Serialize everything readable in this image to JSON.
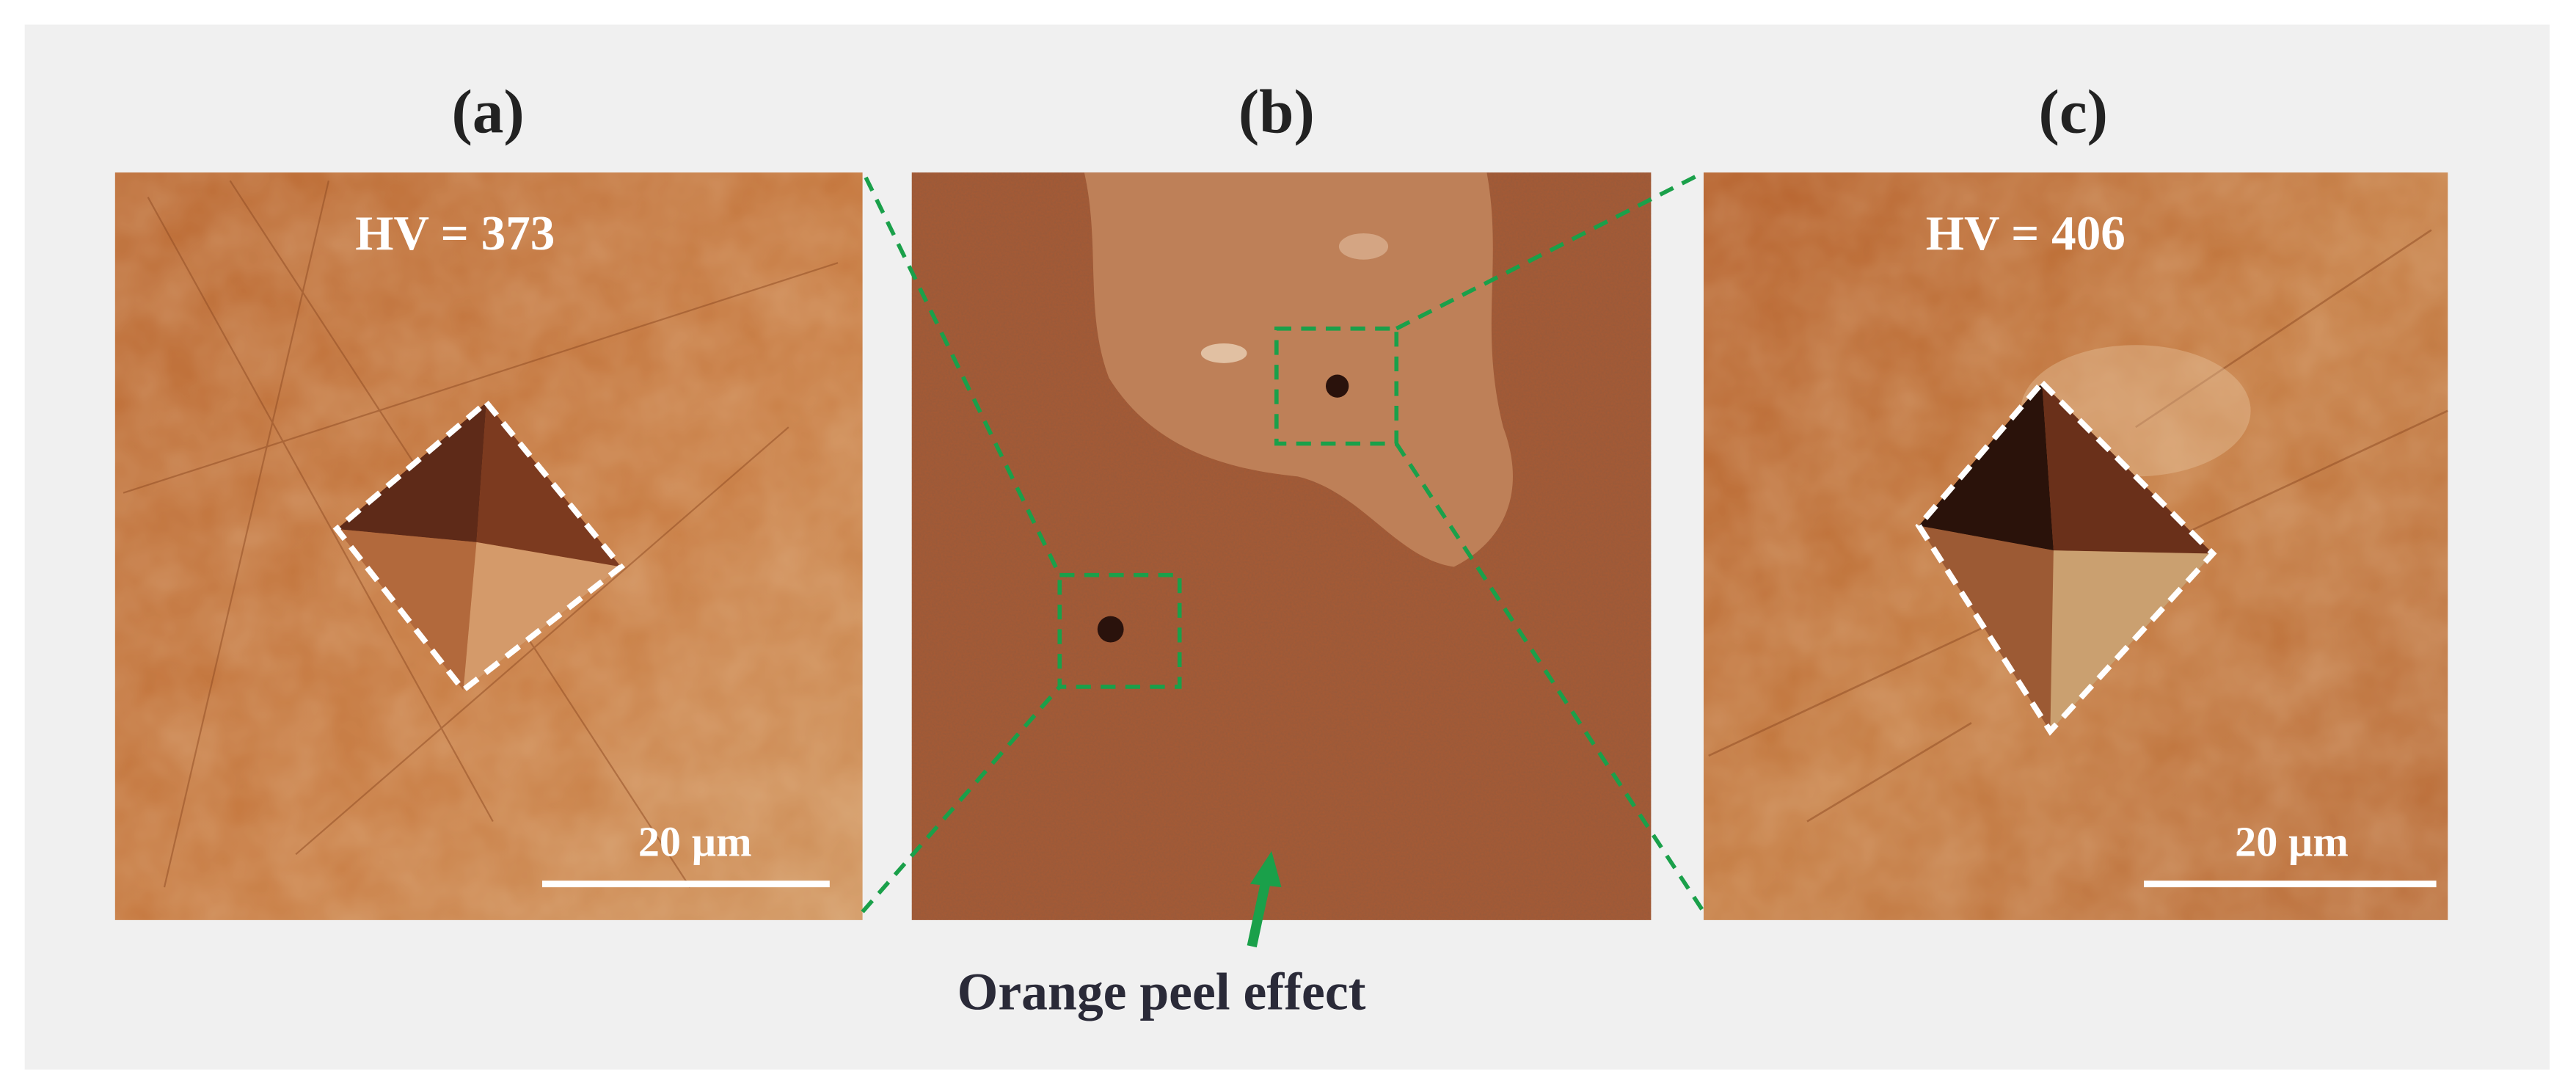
{
  "panels": [
    {
      "label": "(a)",
      "hardness": "HV = 373",
      "scale_bar": "20 µm"
    },
    {
      "label": "(b)",
      "annotation": "Orange peel effect"
    },
    {
      "label": "(c)",
      "hardness": "HV = 406",
      "scale_bar": "20 µm"
    }
  ]
}
